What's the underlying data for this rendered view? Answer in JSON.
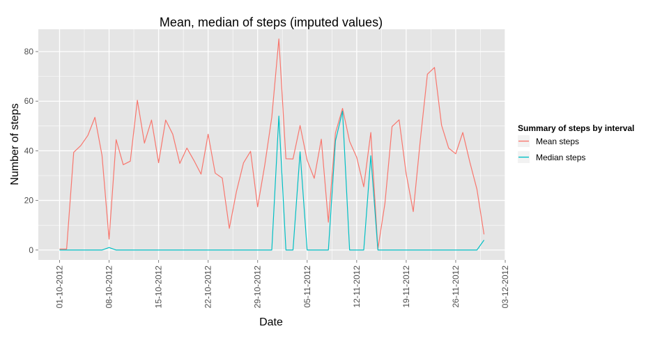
{
  "chart_data": {
    "type": "line",
    "title": "Mean, median of steps (imputed values)",
    "xlabel": "Date",
    "ylabel": "Number of steps",
    "x": [
      "2012-10-01",
      "2012-10-02",
      "2012-10-03",
      "2012-10-04",
      "2012-10-05",
      "2012-10-06",
      "2012-10-07",
      "2012-10-08",
      "2012-10-09",
      "2012-10-10",
      "2012-10-11",
      "2012-10-12",
      "2012-10-13",
      "2012-10-14",
      "2012-10-15",
      "2012-10-16",
      "2012-10-17",
      "2012-10-18",
      "2012-10-19",
      "2012-10-20",
      "2012-10-21",
      "2012-10-22",
      "2012-10-23",
      "2012-10-24",
      "2012-10-25",
      "2012-10-26",
      "2012-10-27",
      "2012-10-28",
      "2012-10-29",
      "2012-10-30",
      "2012-10-31",
      "2012-11-01",
      "2012-11-02",
      "2012-11-03",
      "2012-11-04",
      "2012-11-05",
      "2012-11-06",
      "2012-11-07",
      "2012-11-08",
      "2012-11-09",
      "2012-11-10",
      "2012-11-11",
      "2012-11-12",
      "2012-11-13",
      "2012-11-14",
      "2012-11-15",
      "2012-11-16",
      "2012-11-17",
      "2012-11-18",
      "2012-11-19",
      "2012-11-20",
      "2012-11-21",
      "2012-11-22",
      "2012-11-23",
      "2012-11-24",
      "2012-11-25",
      "2012-11-26",
      "2012-11-27",
      "2012-11-28",
      "2012-11-29",
      "2012-11-30"
    ],
    "series": [
      {
        "name": "Mean steps",
        "color": "#F8766D",
        "values": [
          0.4,
          0.4,
          39.4,
          42.1,
          46.2,
          53.5,
          38.2,
          4.4,
          44.5,
          34.4,
          35.8,
          60.4,
          43.1,
          52.4,
          35.2,
          52.4,
          46.7,
          34.9,
          41.1,
          36.1,
          30.6,
          46.7,
          31.0,
          29.0,
          8.7,
          23.5,
          35.1,
          39.8,
          17.4,
          34.1,
          53.5,
          85.1,
          36.8,
          36.7,
          50.2,
          36.2,
          28.9,
          44.7,
          11.2,
          47.2,
          57.1,
          43.8,
          37.4,
          25.5,
          47.4,
          0.4,
          18.9,
          49.8,
          52.5,
          30.7,
          15.5,
          44.4,
          70.9,
          73.6,
          50.3,
          41.1,
          38.8,
          47.4,
          35.4,
          24.5,
          6.3
        ],
        "original_values_note": ""
      },
      {
        "name": "Median steps",
        "color": "#00BFC4",
        "values": [
          0,
          0,
          0,
          0,
          0,
          0,
          0,
          1,
          0,
          0,
          0,
          0,
          0,
          0,
          0,
          0,
          0,
          0,
          0,
          0,
          0,
          0,
          0,
          0,
          0,
          0,
          0,
          0,
          0,
          0,
          0,
          54,
          0,
          0,
          39.6,
          0,
          0,
          0,
          0,
          44,
          56,
          0,
          0,
          0,
          38,
          0,
          0,
          0,
          0,
          0,
          0,
          0,
          0,
          0,
          0,
          0,
          0,
          0,
          0,
          0,
          4
        ]
      }
    ],
    "x_ticks": [
      "01-10-2012",
      "08-10-2012",
      "15-10-2012",
      "22-10-2012",
      "29-10-2012",
      "05-11-2012",
      "12-11-2012",
      "19-11-2012",
      "26-11-2012",
      "03-12-2012"
    ],
    "y_ticks": [
      "0",
      "20",
      "40",
      "60",
      "80"
    ],
    "ylim": [
      -4,
      89
    ],
    "xlim": [
      "2012-09-28",
      "2012-12-03"
    ],
    "grid": true,
    "legend": {
      "title": "Summary of steps by interval",
      "placement": "right",
      "entries": [
        "Mean steps",
        "Median steps"
      ]
    },
    "panel_background": "#E5E5E5",
    "gridline_color": "#FFFFFF"
  }
}
